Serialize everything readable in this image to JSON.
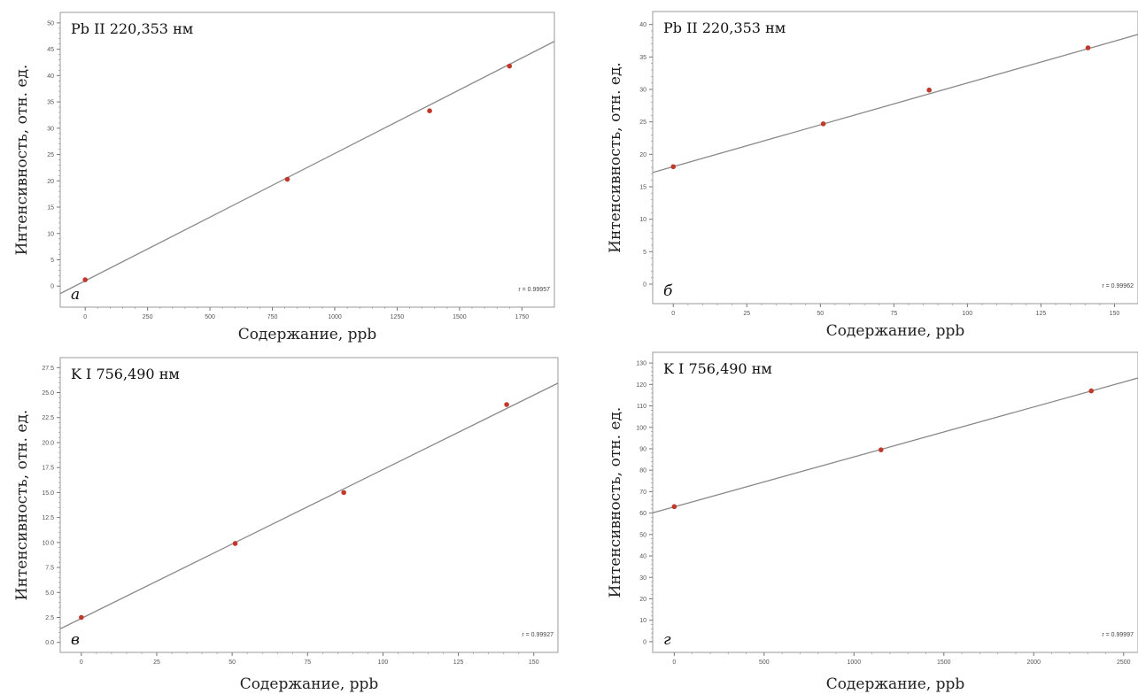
{
  "colors": {
    "fit_line": "#8a8a8a",
    "point": "#c0392b",
    "frame": "#9a9a9a"
  },
  "chart_data": [
    {
      "type": "scatter",
      "panel_letter": "а",
      "title": "Pb II 220,353 нм",
      "xlabel": "Содержание, ppb",
      "ylabel": "Интенсивность, отн. ед.",
      "xlim": [
        -100,
        1880
      ],
      "ylim": [
        -4,
        52
      ],
      "xticks": [
        0,
        250,
        500,
        750,
        1000,
        1250,
        1500,
        1750
      ],
      "xtick_labels": [
        "0",
        "250",
        "500",
        "750",
        "1000",
        "1250",
        "1500",
        "1750"
      ],
      "yticks": [
        0,
        5,
        10,
        15,
        20,
        25,
        30,
        35,
        40,
        45,
        50
      ],
      "ytick_labels": [
        "0",
        "5",
        "10",
        "15",
        "20",
        "25",
        "30",
        "35",
        "40",
        "45",
        "50"
      ],
      "points": [
        {
          "x": 0,
          "y": 1.2
        },
        {
          "x": 810,
          "y": 20.3
        },
        {
          "x": 1380,
          "y": 33.3
        },
        {
          "x": 1700,
          "y": 41.8
        }
      ],
      "fit": {
        "slope": 0.0242,
        "intercept": 1.0
      },
      "r_text": "r = 0.99957",
      "grid": false
    },
    {
      "type": "scatter",
      "panel_letter": "б",
      "title": "Pb II 220,353 нм",
      "xlabel": "Содержание, ppb",
      "ylabel": "Интенсивность, отн. ед.",
      "xlim": [
        -7,
        158
      ],
      "ylim": [
        -3,
        42
      ],
      "xticks": [
        0,
        25,
        50,
        75,
        100,
        125,
        150
      ],
      "xtick_labels": [
        "0",
        "25",
        "50",
        "75",
        "100",
        "125",
        "150"
      ],
      "yticks": [
        0,
        5,
        10,
        15,
        20,
        25,
        30,
        35,
        40
      ],
      "ytick_labels": [
        "0",
        "5",
        "10",
        "15",
        "20",
        "25",
        "30",
        "35",
        "40"
      ],
      "points": [
        {
          "x": 0,
          "y": 18.1
        },
        {
          "x": 51,
          "y": 24.7
        },
        {
          "x": 87,
          "y": 29.9
        },
        {
          "x": 141,
          "y": 36.4
        }
      ],
      "fit": {
        "slope": 0.1289,
        "intercept": 18.1
      },
      "r_text": "r = 0.99962",
      "grid": false
    },
    {
      "type": "scatter",
      "panel_letter": "в",
      "title": "K I 756,490 нм",
      "xlabel": "Содержание, ppb",
      "ylabel": "Интенсивность, отн. ед.",
      "xlim": [
        -7,
        158
      ],
      "ylim": [
        -1,
        28.5
      ],
      "xticks": [
        0,
        25,
        50,
        75,
        100,
        125,
        150
      ],
      "xtick_labels": [
        "0",
        "25",
        "50",
        "75",
        "100",
        "125",
        "150"
      ],
      "yticks": [
        0,
        2.5,
        5,
        7.5,
        10,
        12.5,
        15,
        17.5,
        20,
        22.5,
        25,
        27.5
      ],
      "ytick_labels": [
        "0.0",
        "2.5",
        "5.0",
        "7.5",
        "10.0",
        "12.5",
        "15.0",
        "17.5",
        "20.0",
        "22.5",
        "25.0",
        "27.5"
      ],
      "points": [
        {
          "x": 0,
          "y": 2.5
        },
        {
          "x": 51,
          "y": 9.9
        },
        {
          "x": 87,
          "y": 15.0
        },
        {
          "x": 141,
          "y": 23.8
        }
      ],
      "fit": {
        "slope": 0.149,
        "intercept": 2.4
      },
      "r_text": "r = 0.99927",
      "grid": false
    },
    {
      "type": "scatter",
      "panel_letter": "г",
      "title": "K I 756,490 нм",
      "xlabel": "Содержание, ppb",
      "ylabel": "Интенсивность, отн. ед.",
      "xlim": [
        -120,
        2580
      ],
      "ylim": [
        -5,
        135
      ],
      "xticks": [
        0,
        500,
        1000,
        1500,
        2000,
        2500
      ],
      "xtick_labels": [
        "0",
        "500",
        "1000",
        "1500",
        "2000",
        "2500"
      ],
      "yticks": [
        0,
        10,
        20,
        30,
        40,
        50,
        60,
        70,
        80,
        90,
        100,
        110,
        120,
        130
      ],
      "ytick_labels": [
        "0",
        "10",
        "20",
        "30",
        "40",
        "50",
        "60",
        "70",
        "80",
        "90",
        "100",
        "110",
        "120",
        "130"
      ],
      "points": [
        {
          "x": 0,
          "y": 63
        },
        {
          "x": 1150,
          "y": 89.5
        },
        {
          "x": 2320,
          "y": 117
        }
      ],
      "fit": {
        "slope": 0.0233,
        "intercept": 62.9
      },
      "r_text": "r = 0.99997",
      "grid": false
    }
  ]
}
